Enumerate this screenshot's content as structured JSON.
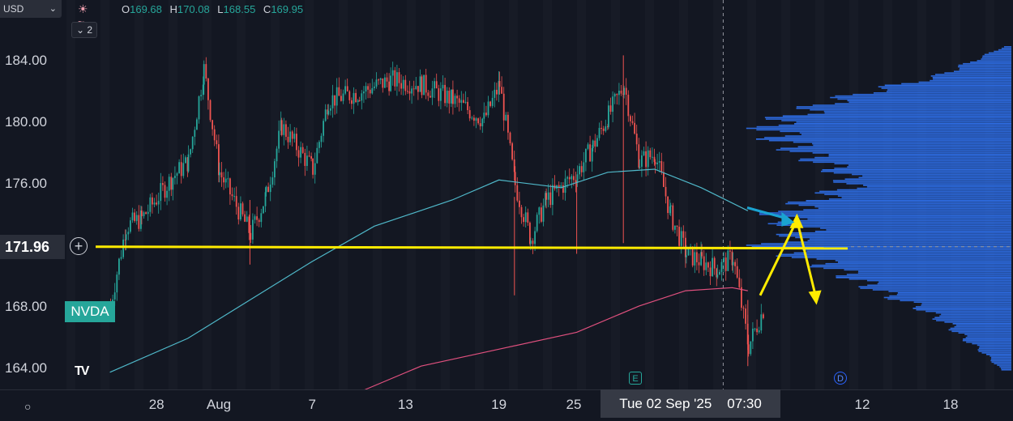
{
  "header": {
    "currency": "USD",
    "interval_count": "2",
    "ohlc": [
      {
        "key": "O",
        "value": "169.68"
      },
      {
        "key": "H",
        "value": "170.08"
      },
      {
        "key": "L",
        "value": "168.55"
      },
      {
        "key": "C",
        "value": "169.95"
      }
    ]
  },
  "symbol": "NVDA",
  "current_price": "171.96",
  "crosshair_date": "Tue 02 Sep '25",
  "crosshair_time": "07:30",
  "events": {
    "earnings": "E",
    "dividend": "D"
  },
  "colors": {
    "background": "#131722",
    "up": "#26a69a",
    "down": "#ef5350",
    "ma_fast": "#4fb8c9",
    "ma_slow": "#e0507e",
    "annotation": "#ffeb00",
    "arrow_blue": "#1aa3d1",
    "volume_profile": "#2f6fe8"
  },
  "chart_data": {
    "type": "candlestick",
    "ylim": [
      162.5,
      185.5
    ],
    "y_ticks": [
      "184.00",
      "180.00",
      "176.00",
      "172.00",
      "168.00",
      "164.00"
    ],
    "x_ticks": [
      "28",
      "Aug",
      "7",
      "13",
      "19",
      "25",
      "12",
      "18"
    ],
    "price_path": [
      {
        "x": "Jul 25",
        "y": 168.2
      },
      {
        "x": "Jul 26",
        "y": 173.3
      },
      {
        "x": "Jul 27",
        "y": 173.8
      },
      {
        "x": "Jul 29",
        "y": 176.5
      },
      {
        "x": "Jul 30",
        "y": 177.5
      },
      {
        "x": "Jul 31",
        "y": 183.5
      },
      {
        "x": "Aug 1",
        "y": 176.8
      },
      {
        "x": "Aug 3",
        "y": 172.8
      },
      {
        "x": "Aug 4",
        "y": 175.3
      },
      {
        "x": "Aug 5",
        "y": 179.8
      },
      {
        "x": "Aug 7",
        "y": 177.0
      },
      {
        "x": "Aug 8",
        "y": 181.5
      },
      {
        "x": "Aug 10",
        "y": 182.0
      },
      {
        "x": "Aug 12",
        "y": 182.8
      },
      {
        "x": "Aug 14",
        "y": 182.5
      },
      {
        "x": "Aug 16",
        "y": 181.5
      },
      {
        "x": "Aug 18",
        "y": 180.2
      },
      {
        "x": "Aug 19",
        "y": 182.5
      },
      {
        "x": "Aug 20",
        "y": 176.0
      },
      {
        "x": "Aug 21",
        "y": 172.5
      },
      {
        "x": "Aug 22",
        "y": 175.0
      },
      {
        "x": "Aug 24",
        "y": 176.8
      },
      {
        "x": "Aug 25",
        "y": 178.5
      },
      {
        "x": "Aug 26",
        "y": 180.5
      },
      {
        "x": "Aug 27",
        "y": 182.5
      },
      {
        "x": "Aug 28",
        "y": 177.5
      },
      {
        "x": "Aug 29",
        "y": 178.0
      },
      {
        "x": "Aug 30",
        "y": 174.0
      },
      {
        "x": "Aug 31",
        "y": 171.5
      },
      {
        "x": "Sep 1",
        "y": 171.0
      },
      {
        "x": "Sep 2",
        "y": 170.5
      },
      {
        "x": "Sep 3",
        "y": 171.3
      },
      {
        "x": "Sep 4",
        "y": 165.5
      },
      {
        "x": "Sep 5",
        "y": 168.0
      }
    ],
    "series": [
      {
        "values": [
          {
            "x": "Jul 25",
            "y": 163.8
          },
          {
            "x": "Jul 30",
            "y": 166.0
          },
          {
            "x": "Aug 3",
            "y": 168.5
          },
          {
            "x": "Aug 7",
            "y": 171.0
          },
          {
            "x": "Aug 11",
            "y": 173.3
          },
          {
            "x": "Aug 16",
            "y": 175.0
          },
          {
            "x": "Aug 19",
            "y": 176.3
          },
          {
            "x": "Aug 23",
            "y": 175.8
          },
          {
            "x": "Aug 26",
            "y": 176.8
          },
          {
            "x": "Aug 29",
            "y": 177.0
          },
          {
            "x": "Sep 1",
            "y": 175.8
          },
          {
            "x": "Sep 4",
            "y": 174.3
          }
        ]
      },
      {
        "values": [
          {
            "x": "Aug 10",
            "y": 162.5
          },
          {
            "x": "Aug 14",
            "y": 164.2
          },
          {
            "x": "Aug 19",
            "y": 165.3
          },
          {
            "x": "Aug 24",
            "y": 166.4
          },
          {
            "x": "Aug 28",
            "y": 168.1
          },
          {
            "x": "Aug 31",
            "y": 169.1
          },
          {
            "x": "Sep 3",
            "y": 169.3
          },
          {
            "x": "Sep 4",
            "y": 169.1
          }
        ]
      }
    ],
    "horizontal_line": 171.96,
    "annotation_arrows": [
      {
        "from": {
          "x": "Sep 5",
          "y": 168.8
        },
        "via": {
          "x": "Sep 7",
          "y": 173.7
        },
        "to": {
          "x": "Sep 8",
          "y": 168.5
        }
      }
    ],
    "volume_profile_shape": [
      [
        185.0,
        0.03
      ],
      [
        184.0,
        0.16
      ],
      [
        183.0,
        0.3
      ],
      [
        182.5,
        0.45
      ],
      [
        181.5,
        0.7
      ],
      [
        180.5,
        0.85
      ],
      [
        180.0,
        0.95
      ],
      [
        179.0,
        0.9
      ],
      [
        178.0,
        0.8
      ],
      [
        177.0,
        0.68
      ],
      [
        176.0,
        0.62
      ],
      [
        175.0,
        0.78
      ],
      [
        174.0,
        0.92
      ],
      [
        173.0,
        0.8
      ],
      [
        172.0,
        0.95
      ],
      [
        171.0,
        0.75
      ],
      [
        170.0,
        0.62
      ],
      [
        169.0,
        0.5
      ],
      [
        168.0,
        0.35
      ],
      [
        167.0,
        0.25
      ],
      [
        166.0,
        0.18
      ],
      [
        165.0,
        0.1
      ],
      [
        164.0,
        0.04
      ]
    ]
  }
}
